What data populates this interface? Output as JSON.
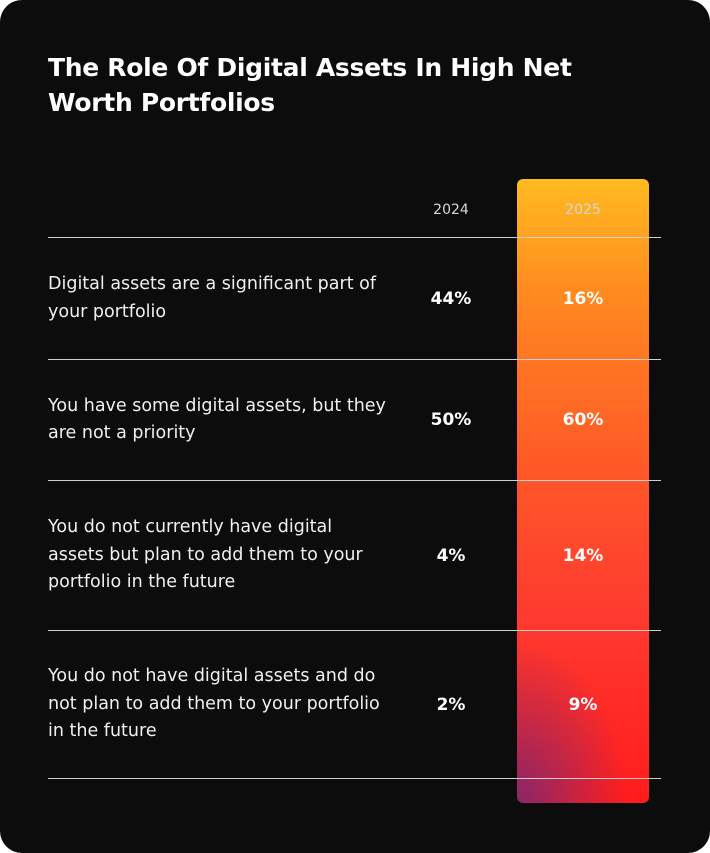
{
  "header": {
    "title": "The Role Of Digital Assets In High Net Worth Portfolios"
  },
  "table": {
    "columns": [
      "2024",
      "2025"
    ],
    "rows": [
      [
        "Digital assets are a significant part of your portfolio",
        "44%",
        "16%"
      ],
      [
        "You have some digital assets, but they are not a priority",
        "50%",
        "60%"
      ],
      [
        "You do not currently have digital assets but plan to add them to your portfolio in the future",
        "4%",
        "14%"
      ],
      [
        "You do not have digital assets and do not plan to add them to your portfolio in the future",
        "2%",
        "9%"
      ]
    ]
  }
}
